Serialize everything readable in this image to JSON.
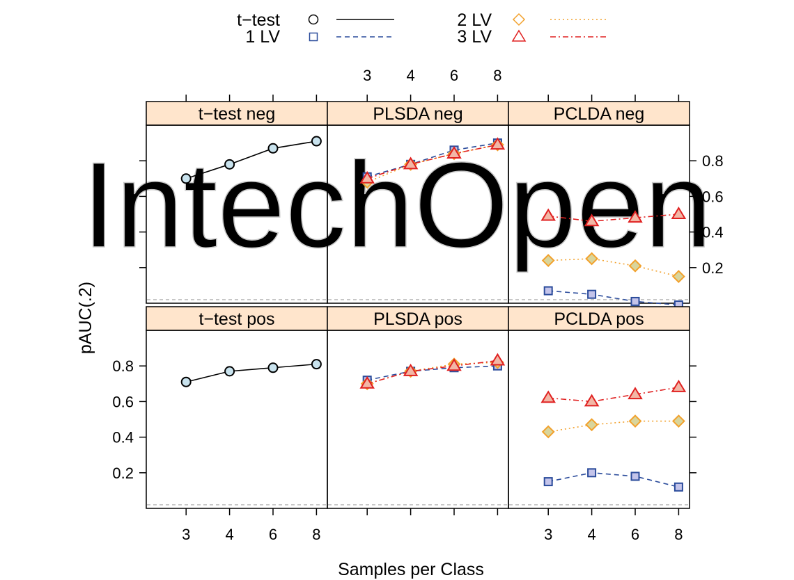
{
  "chart_data": {
    "type": "line",
    "layout": "trellis 3 columns x 2 rows",
    "xlabel": "Samples per Class",
    "ylabel": "pAUC(.2)",
    "x": [
      3,
      4,
      6,
      8
    ],
    "ylim": [
      0.0,
      1.0
    ],
    "yticks": [
      0.2,
      0.4,
      0.6,
      0.8
    ],
    "grid": false,
    "legend_position": "top",
    "reference_line": 0.02,
    "legend": [
      {
        "name": "t−test",
        "marker": "circle",
        "line": "solid",
        "color": "#000000"
      },
      {
        "name": "1 LV",
        "marker": "square",
        "line": "dashed",
        "color": "#2a4b9b"
      },
      {
        "name": "2 LV",
        "marker": "diamond",
        "line": "dotted",
        "color": "#f2a12c"
      },
      {
        "name": "3 LV",
        "marker": "triangle",
        "line": "dashdot",
        "color": "#e02020"
      }
    ],
    "panels": [
      {
        "title": "t−test neg",
        "row": "top",
        "col": 0,
        "series": [
          {
            "name": "t−test",
            "values": [
              0.7,
              0.78,
              0.87,
              0.91
            ]
          }
        ]
      },
      {
        "title": "PLSDA neg",
        "row": "top",
        "col": 1,
        "series": [
          {
            "name": "1 LV",
            "values": [
              0.71,
              0.78,
              0.86,
              0.9
            ]
          },
          {
            "name": "2 LV",
            "values": [
              0.68,
              0.78,
              0.84,
              0.89
            ]
          },
          {
            "name": "3 LV",
            "values": [
              0.7,
              0.78,
              0.84,
              0.89
            ]
          }
        ]
      },
      {
        "title": "PCLDA neg",
        "row": "top",
        "col": 2,
        "series": [
          {
            "name": "1 LV",
            "values": [
              0.07,
              0.05,
              0.01,
              -0.01
            ]
          },
          {
            "name": "2 LV",
            "values": [
              0.24,
              0.25,
              0.21,
              0.15
            ]
          },
          {
            "name": "3 LV",
            "values": [
              0.49,
              0.46,
              0.48,
              0.5
            ]
          }
        ]
      },
      {
        "title": "t−test pos",
        "row": "bottom",
        "col": 0,
        "series": [
          {
            "name": "t−test",
            "values": [
              0.71,
              0.77,
              0.79,
              0.81
            ]
          }
        ]
      },
      {
        "title": "PLSDA pos",
        "row": "bottom",
        "col": 1,
        "series": [
          {
            "name": "1 LV",
            "values": [
              0.72,
              0.77,
              0.79,
              0.8
            ]
          },
          {
            "name": "2 LV",
            "values": [
              0.7,
              0.77,
              0.81,
              0.82
            ]
          },
          {
            "name": "3 LV",
            "values": [
              0.7,
              0.77,
              0.8,
              0.83
            ]
          }
        ]
      },
      {
        "title": "PCLDA pos",
        "row": "bottom",
        "col": 2,
        "series": [
          {
            "name": "1 LV",
            "values": [
              0.15,
              0.2,
              0.18,
              0.12
            ]
          },
          {
            "name": "2 LV",
            "values": [
              0.43,
              0.47,
              0.49,
              0.49
            ]
          },
          {
            "name": "3 LV",
            "values": [
              0.62,
              0.6,
              0.64,
              0.68
            ]
          }
        ]
      }
    ]
  },
  "watermark": {
    "text": "IntechOpen",
    "color": "#c8c8c8"
  },
  "colors": {
    "strip_fill": "#ffe5cc",
    "point_fill": "#c9e3ee",
    "square_fill": "#c4c4ea",
    "diamond_fill": "#d9d59c",
    "triangle_fill": "#f2b7a6",
    "reference_line": "#b0b0b0"
  }
}
